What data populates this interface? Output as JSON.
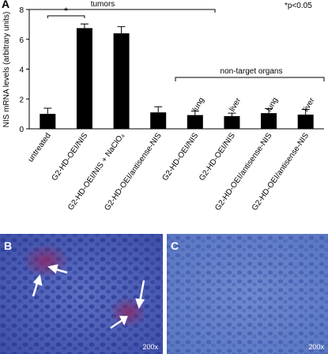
{
  "chart_data": {
    "type": "bar",
    "panel_label": "A",
    "note": "*p<0.05",
    "ylabel": "NIS mRNA levels (arbitrary units)",
    "categories": [
      "untreated",
      "G2-HD-OEI/NIS",
      "G2-HD-OEI/NIS + NaClO₄",
      "G2-HD-OEI/antisense-NIS",
      "G2-HD-OEI/NIS",
      "G2-HD-OEI/NIS",
      "G2-HD-OEI/antisense-NIS",
      "G2-HD-OEI/antisense-NIS"
    ],
    "values": [
      1.0,
      6.75,
      6.4,
      1.1,
      0.92,
      0.85,
      1.05,
      0.95
    ],
    "errors": [
      0.38,
      0.28,
      0.45,
      0.38,
      0.27,
      0.2,
      0.3,
      0.35
    ],
    "color": "#000000",
    "ylim": [
      0,
      8
    ],
    "yticks": [
      0,
      2,
      4,
      6,
      8
    ],
    "tumors_label": "tumors",
    "significance": "*",
    "non_target_label": "non-target organs",
    "organ_labels": [
      "lung",
      "liver",
      "lung",
      "liver"
    ]
  },
  "panels": [
    {
      "label": "B",
      "magnification": "200x"
    },
    {
      "label": "C",
      "magnification": "200x"
    }
  ]
}
